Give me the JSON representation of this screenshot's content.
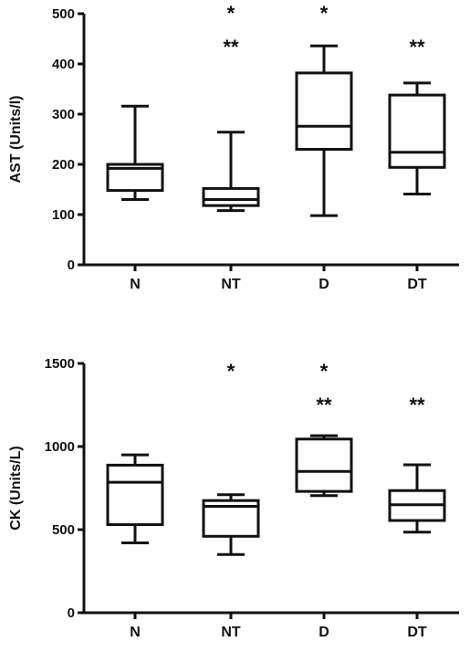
{
  "chart_data": [
    {
      "type": "box",
      "ylabel": "AST (Units/l)",
      "ylim": [
        0,
        500
      ],
      "yticks": [
        0,
        100,
        200,
        300,
        400,
        500
      ],
      "categories": [
        "N",
        "NT",
        "D",
        "DT"
      ],
      "boxes": [
        {
          "category": "N",
          "min": 130,
          "q1": 148,
          "median": 192,
          "q3": 200,
          "max": 316
        },
        {
          "category": "NT",
          "min": 108,
          "q1": 118,
          "median": 130,
          "q3": 152,
          "max": 264
        },
        {
          "category": "D",
          "min": 98,
          "q1": 230,
          "median": 276,
          "q3": 382,
          "max": 436
        },
        {
          "category": "DT",
          "min": 141,
          "q1": 194,
          "median": 224,
          "q3": 338,
          "max": 362
        }
      ],
      "annotations": [
        {
          "category": "NT",
          "lines": [
            "*",
            "**"
          ]
        },
        {
          "category": "D",
          "lines": [
            "*"
          ]
        },
        {
          "category": "DT",
          "lines": [
            "**"
          ]
        }
      ]
    },
    {
      "type": "box",
      "ylabel": "CK (Units/L)",
      "ylim": [
        0,
        1500
      ],
      "yticks": [
        0,
        500,
        1000,
        1500
      ],
      "categories": [
        "N",
        "NT",
        "D",
        "DT"
      ],
      "boxes": [
        {
          "category": "N",
          "min": 420,
          "q1": 530,
          "median": 785,
          "q3": 888,
          "max": 950
        },
        {
          "category": "NT",
          "min": 350,
          "q1": 460,
          "median": 640,
          "q3": 675,
          "max": 710
        },
        {
          "category": "D",
          "min": 705,
          "q1": 730,
          "median": 850,
          "q3": 1045,
          "max": 1065
        },
        {
          "category": "DT",
          "min": 485,
          "q1": 555,
          "median": 650,
          "q3": 735,
          "max": 890
        }
      ],
      "annotations": [
        {
          "category": "NT",
          "lines": [
            "*"
          ]
        },
        {
          "category": "D",
          "lines": [
            "*",
            "**"
          ]
        },
        {
          "category": "DT",
          "lines": [
            "**"
          ]
        }
      ]
    }
  ]
}
